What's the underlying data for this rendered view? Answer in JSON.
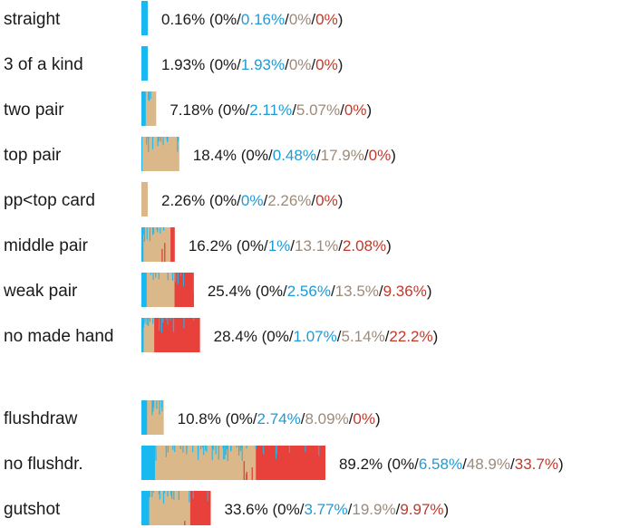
{
  "chart_data": {
    "type": "bar",
    "colors": {
      "nuts": "#1a1a1a",
      "blue": "#1e9bd7",
      "tan": "#9c8b7a",
      "red": "#c0392b",
      "bar_blue": "#1ab8f0",
      "bar_tan": "#dab88a",
      "bar_red": "#e8403b"
    },
    "rows": [
      {
        "label": "straight",
        "total": "0.16%",
        "parts": [
          "0%",
          "0.16%",
          "0%",
          "0%"
        ],
        "values": [
          0,
          0.16,
          0,
          0
        ]
      },
      {
        "label": "3 of a kind",
        "total": "1.93%",
        "parts": [
          "0%",
          "1.93%",
          "0%",
          "0%"
        ],
        "values": [
          0,
          1.93,
          0,
          0
        ]
      },
      {
        "label": "two pair",
        "total": "7.18%",
        "parts": [
          "0%",
          "2.11%",
          "5.07%",
          "0%"
        ],
        "values": [
          0,
          2.11,
          5.07,
          0
        ]
      },
      {
        "label": "top pair",
        "total": "18.4%",
        "parts": [
          "0%",
          "0.48%",
          "17.9%",
          "0%"
        ],
        "values": [
          0,
          0.48,
          17.9,
          0
        ]
      },
      {
        "label": "pp<top card",
        "total": "2.26%",
        "parts": [
          "0%",
          "0%",
          "2.26%",
          "0%"
        ],
        "values": [
          0,
          0,
          2.26,
          0
        ]
      },
      {
        "label": "middle pair",
        "total": "16.2%",
        "parts": [
          "0%",
          "1%",
          "13.1%",
          "2.08%"
        ],
        "values": [
          0,
          1,
          13.1,
          2.08
        ]
      },
      {
        "label": "weak pair",
        "total": "25.4%",
        "parts": [
          "0%",
          "2.56%",
          "13.5%",
          "9.36%"
        ],
        "values": [
          0,
          2.56,
          13.5,
          9.36
        ]
      },
      {
        "label": "no made hand",
        "total": "28.4%",
        "parts": [
          "0%",
          "1.07%",
          "5.14%",
          "22.2%"
        ],
        "values": [
          0,
          1.07,
          5.14,
          22.2
        ]
      },
      {
        "label": "flushdraw",
        "total": "10.8%",
        "parts": [
          "0%",
          "2.74%",
          "8.09%",
          "0%"
        ],
        "values": [
          0,
          2.74,
          8.09,
          0
        ],
        "group": 2
      },
      {
        "label": "no flushdr.",
        "total": "89.2%",
        "parts": [
          "0%",
          "6.58%",
          "48.9%",
          "33.7%"
        ],
        "values": [
          0,
          6.58,
          48.9,
          33.7
        ],
        "group": 2
      },
      {
        "label": "gutshot",
        "total": "33.6%",
        "parts": [
          "0%",
          "3.77%",
          "19.9%",
          "9.97%"
        ],
        "values": [
          0,
          3.77,
          19.9,
          9.97
        ],
        "group": 2
      }
    ]
  }
}
